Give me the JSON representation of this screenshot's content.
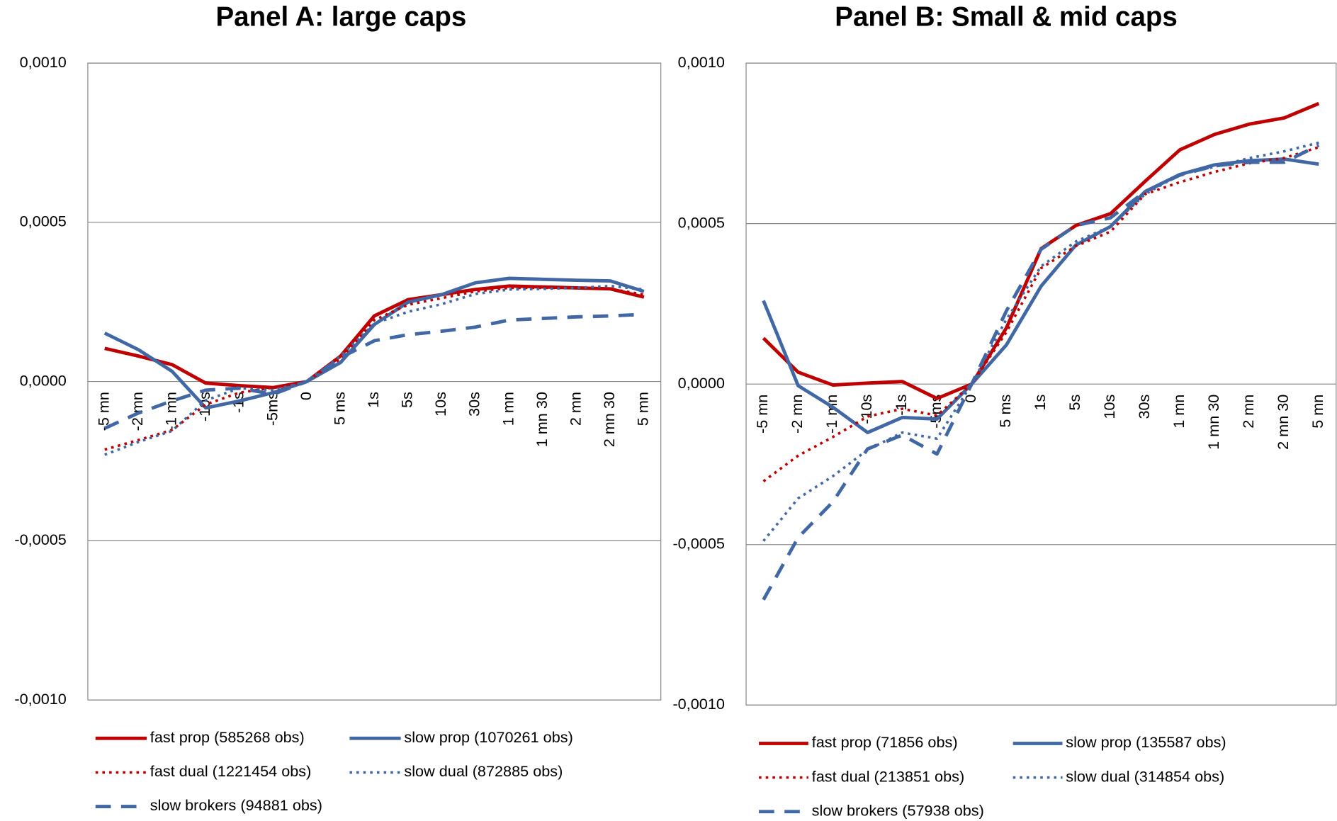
{
  "chart_data": [
    {
      "type": "line",
      "title": "Panel A: large caps",
      "categories": [
        "-5 mn",
        "-2 mn",
        "-1 mn",
        "-10s",
        "-1s",
        "-5ms",
        "0",
        "5 ms",
        "1s",
        "5s",
        "10s",
        "30s",
        "1 mn",
        "1 mn 30",
        "2 mn",
        "2 mn 30",
        "5 mn"
      ],
      "ylim": [
        -0.001,
        0.001
      ],
      "yticks": [
        {
          "value": -0.001,
          "label": "-0,0010"
        },
        {
          "value": -0.0005,
          "label": "-0,0005"
        },
        {
          "value": 0,
          "label": "0,0000"
        },
        {
          "value": 0.0005,
          "label": "0,0005"
        },
        {
          "value": 0.001,
          "label": "0,0010"
        }
      ],
      "grid": true,
      "negative_tick_color": "#ff0000",
      "series": [
        {
          "name": "fast prop (585268 obs)",
          "color": "#c00000",
          "line_style": "solid",
          "values": [
            0.000104,
            8e-05,
            5.3e-05,
            -5e-06,
            -1.3e-05,
            -1.9e-05,
            0,
            8e-05,
            0.000206,
            0.000257,
            0.000273,
            0.000289,
            0.0003,
            0.000297,
            0.000294,
            0.000291,
            0.000265
          ]
        },
        {
          "name": "slow prop (1070261 obs)",
          "color": "#4168a4",
          "line_style": "solid",
          "values": [
            0.000152,
            0.0001,
            3.2e-05,
            -8.3e-05,
            -6.1e-05,
            -3.5e-05,
            0,
            6e-05,
            0.000179,
            0.000249,
            0.000273,
            0.00031,
            0.000324,
            0.000321,
            0.000318,
            0.000316,
            0.000283
          ]
        },
        {
          "name": "fast dual (1221454 obs)",
          "color": "#c00000",
          "line_style": "dotted",
          "values": [
            -0.000214,
            -0.000184,
            -0.000152,
            -7.2e-05,
            -3.5e-05,
            -1.9e-05,
            0,
            7.2e-05,
            0.000193,
            0.000241,
            0.000262,
            0.000283,
            0.000294,
            0.000294,
            0.000294,
            0.000291,
            0.000273
          ]
        },
        {
          "name": "slow dual (872885 obs)",
          "color": "#4168a4",
          "line_style": "dotted",
          "values": [
            -0.00023,
            -0.00019,
            -0.000155,
            -5.9e-05,
            -2.1e-05,
            -2.7e-05,
            0,
            8e-05,
            0.000182,
            0.000219,
            0.000243,
            0.000275,
            0.000289,
            0.000291,
            0.000294,
            0.0003,
            0.000289
          ]
        },
        {
          "name": "slow brokers (94881 obs)",
          "color": "#4168a4",
          "line_style": "dashed",
          "values": [
            -0.000147,
            -9.9e-05,
            -6.1e-05,
            -2.7e-05,
            -2.1e-05,
            -4e-05,
            0,
            7.5e-05,
            0.000128,
            0.000147,
            0.000158,
            0.000171,
            0.000193,
            0.000198,
            0.000203,
            0.000206,
            0.000211
          ]
        }
      ]
    },
    {
      "type": "line",
      "title": "Panel B: Small & mid caps",
      "categories": [
        "-5 mn",
        "-2 mn",
        "-1 mn",
        "-10s",
        "-1s",
        "-5ms",
        "0",
        "5 ms",
        "1s",
        "5s",
        "10s",
        "30s",
        "1 mn",
        "1 mn 30",
        "2 mn",
        "2 mn 30",
        "5 mn"
      ],
      "ylim": [
        -0.001,
        0.001
      ],
      "yticks": [
        {
          "value": -0.001,
          "label": "-0,0010"
        },
        {
          "value": -0.0005,
          "label": "-0,0005"
        },
        {
          "value": 0,
          "label": "0,0000"
        },
        {
          "value": 0.0005,
          "label": "0,0005"
        },
        {
          "value": 0.001,
          "label": "0,0010"
        }
      ],
      "grid": true,
      "negative_tick_color": "#ff0000",
      "series": [
        {
          "name": "fast prop (71856 obs)",
          "color": "#c00000",
          "line_style": "solid",
          "values": [
            0.000143,
            3.7e-05,
            -3e-06,
            3e-06,
            8e-06,
            -4.5e-05,
            0,
            0.000175,
            0.000422,
            0.000494,
            0.000531,
            0.000632,
            0.00073,
            0.000778,
            0.00081,
            0.000829,
            0.000874
          ]
        },
        {
          "name": "slow prop (135587 obs)",
          "color": "#4168a4",
          "line_style": "solid",
          "values": [
            0.00026,
            -5e-06,
            -7.2e-05,
            -0.000151,
            -0.000104,
            -0.000109,
            0,
            0.000122,
            0.000305,
            0.000433,
            0.000491,
            0.0006,
            0.000653,
            0.000683,
            0.000696,
            0.000701,
            0.000685
          ]
        },
        {
          "name": "fast dual (213851 obs)",
          "color": "#c00000",
          "line_style": "dotted",
          "values": [
            -0.000303,
            -0.000223,
            -0.000165,
            -0.000101,
            -7.7e-05,
            -9.8e-05,
            0,
            0.000162,
            0.000361,
            0.00043,
            0.000475,
            0.000592,
            0.000629,
            0.000661,
            0.000688,
            0.000704,
            0.000738
          ]
        },
        {
          "name": "slow dual (314854 obs)",
          "color": "#4168a4",
          "line_style": "dotted",
          "values": [
            -0.000489,
            -0.000356,
            -0.000287,
            -0.000205,
            -0.000151,
            -0.00017,
            0,
            0.000202,
            0.000367,
            0.000444,
            0.000491,
            0.000592,
            0.000653,
            0.000677,
            0.000704,
            0.000725,
            0.000752
          ]
        },
        {
          "name": "slow brokers (57938 obs)",
          "color": "#4168a4",
          "line_style": "dashed",
          "values": [
            -0.000672,
            -0.000478,
            -0.000367,
            -0.000202,
            -0.000159,
            -0.000218,
            0,
            0.000228,
            0.00042,
            0.000494,
            0.000518,
            0.0006,
            0.000651,
            0.00068,
            0.000691,
            0.000691,
            0.000744
          ]
        }
      ]
    }
  ]
}
